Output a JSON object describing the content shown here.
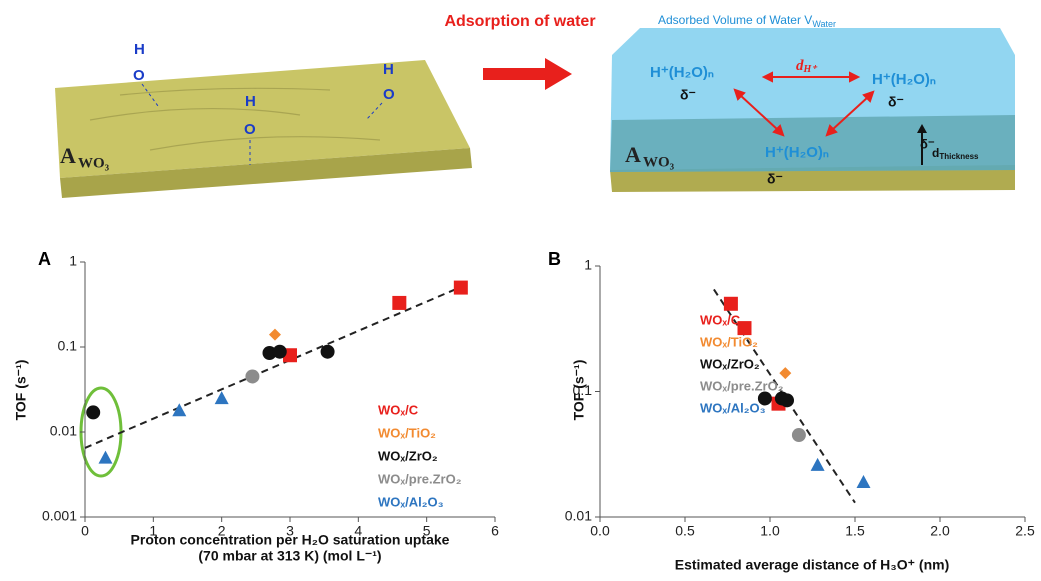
{
  "illustration": {
    "arrow_label": "Adsorption of water",
    "volume_label": "Adsorbed Volume of Water V",
    "volume_sub": "Water",
    "support_main": "A",
    "support_sub": "WO₃",
    "molecules": [
      {
        "h": "H",
        "o": "O"
      },
      {
        "h": "H",
        "o": "O"
      },
      {
        "h": "H",
        "o": "O"
      }
    ],
    "hydronium": [
      "H⁺(H₂O)ₙ",
      "H⁺(H₂O)ₙ",
      "H⁺(H₂O)ₙ"
    ],
    "delta": [
      "δ⁻",
      "δ⁻",
      "δ⁻",
      "δ⁻"
    ],
    "distance_main": "d",
    "distance_sub": "H⁺",
    "thickness_main": "d",
    "thickness_sub": "Thickness"
  },
  "chart_data": [
    {
      "type": "scatter",
      "panel_label": "A",
      "y_label": "TOF (s⁻¹)",
      "x_label": [
        "Proton concentration per H₂O saturation uptake",
        "(70 mbar at 313 K)  (mol L⁻¹)"
      ],
      "xlim": [
        0,
        6
      ],
      "xticks": [
        0,
        1,
        2,
        3,
        4,
        5,
        6
      ],
      "ylim": [
        0.001,
        1
      ],
      "yticks": [
        0.001,
        0.01,
        0.1,
        1
      ],
      "ylog": true,
      "series": [
        {
          "name": "WOₓ/C",
          "color": "#e8201c",
          "marker": "square",
          "x": [
            3.0,
            4.6,
            5.5
          ],
          "values": [
            0.08,
            0.33,
            0.5
          ]
        },
        {
          "name": "WOₓ/TiO₂",
          "color": "#f28a30",
          "marker": "diamond",
          "x": [
            2.78
          ],
          "values": [
            0.14
          ]
        },
        {
          "name": "WOₓ/ZrO₂",
          "color": "#111111",
          "marker": "circle",
          "x": [
            0.12,
            2.7,
            2.85,
            3.55
          ],
          "values": [
            0.017,
            0.085,
            0.088,
            0.088
          ]
        },
        {
          "name": "WOₓ/pre.ZrO₂",
          "color": "#8c8c8c",
          "marker": "circle",
          "x": [
            2.45
          ],
          "values": [
            0.045
          ]
        },
        {
          "name": "WOₓ/Al₂O₃",
          "color": "#2d75c0",
          "marker": "triangle",
          "x": [
            0.3,
            1.38,
            2.0
          ],
          "values": [
            0.005,
            0.018,
            0.025
          ]
        }
      ],
      "trendline": {
        "color": "#222222",
        "x": [
          0,
          5.6
        ],
        "values": [
          0.0065,
          0.55
        ]
      }
    },
    {
      "type": "scatter",
      "panel_label": "B",
      "y_label": "TOF (s⁻¹)",
      "x_label": [
        "Estimated average distance of H₃O⁺ (nm)"
      ],
      "xlim": [
        0,
        2.5
      ],
      "xticks": [
        {
          "value": 0,
          "label": "0.0"
        },
        {
          "value": 0.5,
          "label": "0.5"
        },
        {
          "value": 1,
          "label": "1.0"
        },
        {
          "value": 1.5,
          "label": "1.5"
        },
        {
          "value": 2,
          "label": "2.0"
        },
        {
          "value": 2.5,
          "label": "2.5"
        }
      ],
      "ylim": [
        0.01,
        1
      ],
      "yticks": [
        0.01,
        0.1,
        1
      ],
      "ylog": true,
      "series": [
        {
          "name": "WOₓ/C",
          "color": "#e8201c",
          "marker": "square",
          "x": [
            0.77,
            0.85,
            1.05
          ],
          "values": [
            0.5,
            0.32,
            0.08
          ]
        },
        {
          "name": "WOₓ/TiO₂",
          "color": "#f28a30",
          "marker": "diamond",
          "x": [
            1.09
          ],
          "values": [
            0.14
          ]
        },
        {
          "name": "WOₓ/ZrO₂",
          "color": "#111111",
          "marker": "circle",
          "x": [
            0.97,
            1.07,
            1.1
          ],
          "values": [
            0.088,
            0.088,
            0.085
          ]
        },
        {
          "name": "WOₓ/pre.ZrO₂",
          "color": "#8c8c8c",
          "marker": "circle",
          "x": [
            1.17
          ],
          "values": [
            0.045
          ]
        },
        {
          "name": "WOₓ/Al₂O₃",
          "color": "#2d75c0",
          "marker": "triangle",
          "x": [
            1.28,
            1.55
          ],
          "values": [
            0.026,
            0.019
          ]
        }
      ],
      "trendline": {
        "color": "#222222",
        "x": [
          0.67,
          1.5
        ],
        "values": [
          0.65,
          0.013
        ]
      }
    }
  ]
}
